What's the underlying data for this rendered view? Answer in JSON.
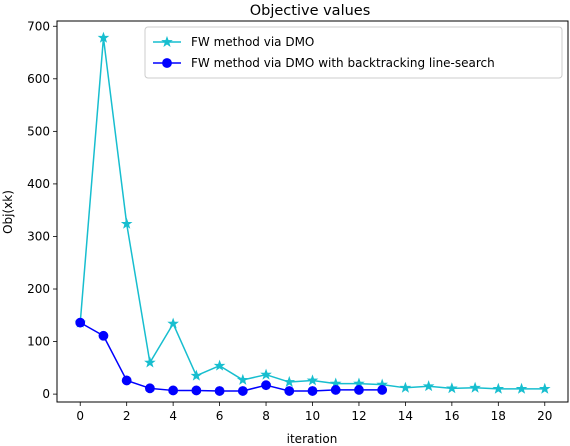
{
  "chart_data": {
    "type": "line",
    "title": "Objective values",
    "xlabel": "iteration",
    "ylabel": "Obj(xk)",
    "xlim": [
      -1,
      21
    ],
    "ylim": [
      -15,
      710
    ],
    "xticks": [
      0,
      2,
      4,
      6,
      8,
      10,
      12,
      14,
      16,
      18,
      20
    ],
    "yticks": [
      0,
      100,
      200,
      300,
      400,
      500,
      600,
      700
    ],
    "grid": false,
    "legend_position": "top-right",
    "series": [
      {
        "name": "FW method via DMO",
        "color": "#17becf",
        "marker": "star",
        "x": [
          0,
          1,
          2,
          3,
          4,
          5,
          6,
          7,
          8,
          9,
          10,
          11,
          12,
          13,
          14,
          15,
          16,
          17,
          18,
          19,
          20
        ],
        "values": [
          136,
          678,
          324,
          60,
          134,
          35,
          54,
          27,
          37,
          23,
          26,
          20,
          20,
          18,
          12,
          15,
          11,
          12,
          10,
          10,
          10
        ]
      },
      {
        "name": "FW method via DMO with backtracking line-search",
        "color": "#0000ff",
        "marker": "circle",
        "x": [
          0,
          1,
          2,
          3,
          4,
          5,
          6,
          7,
          8,
          9,
          10,
          11,
          12,
          13
        ],
        "values": [
          136,
          111,
          26,
          11,
          7,
          7,
          6,
          6,
          17,
          6,
          6,
          8,
          8,
          8
        ]
      }
    ]
  }
}
